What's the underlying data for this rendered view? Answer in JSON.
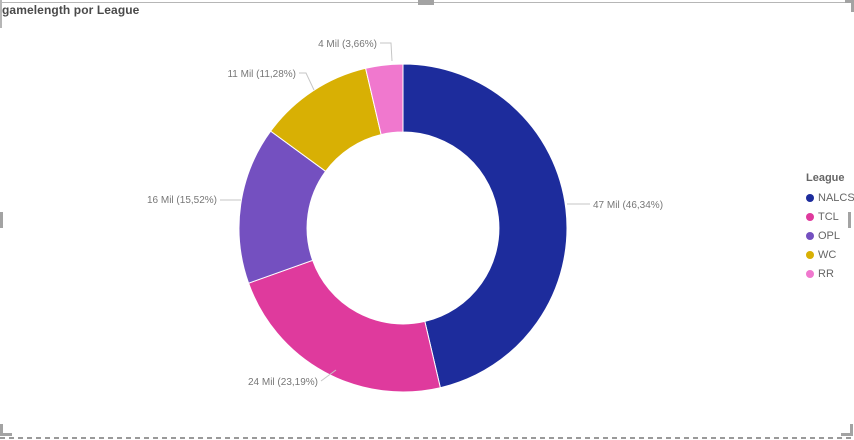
{
  "chart_data": {
    "type": "donut",
    "title": "gamelength por League",
    "legend_title": "League",
    "legend_position": "right",
    "categories": [
      "NALCS",
      "TCL",
      "OPL",
      "WC",
      "RR"
    ],
    "values_mil": [
      47,
      24,
      16,
      11,
      4
    ],
    "percentages": [
      46.34,
      23.19,
      15.52,
      11.28,
      3.66
    ],
    "labels": [
      "47 Mil (46,34%)",
      "24 Mil (23,19%)",
      "16 Mil (15,52%)",
      "11 Mil (11,28%)",
      "4 Mil (3,66%)"
    ],
    "colors": [
      "#1D2C9C",
      "#DF3A9D",
      "#7450C0",
      "#D8B004",
      "#F078CE"
    ],
    "start_angle_deg": 0,
    "direction": "clockwise",
    "inner_radius_ratio": 0.585
  }
}
